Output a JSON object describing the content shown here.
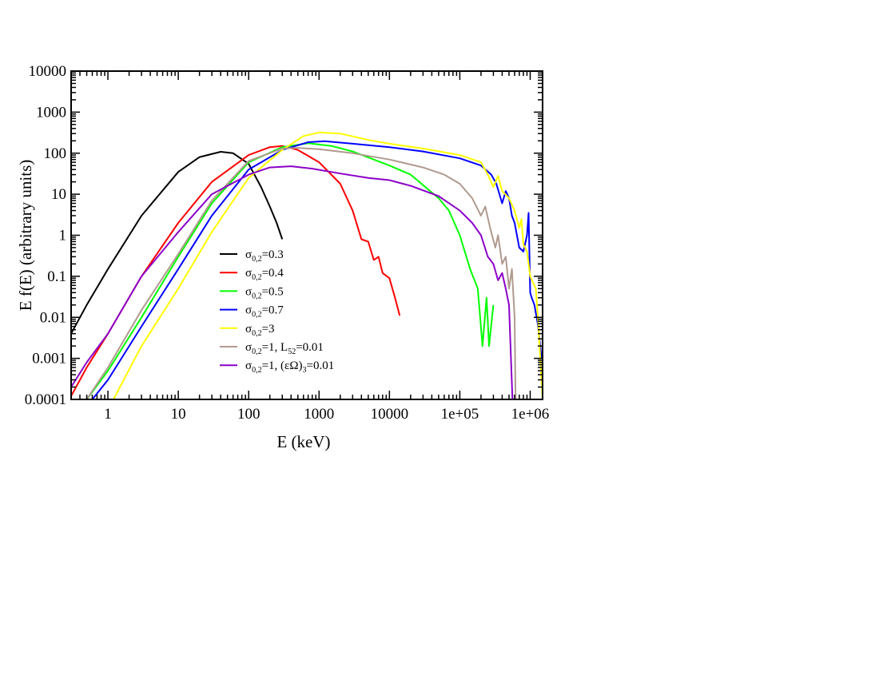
{
  "chart_data": {
    "type": "line",
    "xlabel": "E (keV)",
    "ylabel": "E f(E) (arbitrary units)",
    "x_scale": "log",
    "y_scale": "log",
    "xlim": [
      0.3,
      1500000
    ],
    "ylim": [
      0.0001,
      10000
    ],
    "x_tick_labels": [
      "1",
      "10",
      "100",
      "1000",
      "10000",
      "1e+05",
      "1e+06"
    ],
    "x_tick_values": [
      1,
      10,
      100,
      1000,
      10000,
      100000,
      1000000
    ],
    "y_tick_labels": [
      "0.0001",
      "0.001",
      "0.01",
      "0.1",
      "1",
      "10",
      "100",
      "1000",
      "10000"
    ],
    "y_tick_values": [
      0.0001,
      0.001,
      0.01,
      0.1,
      1,
      10,
      100,
      1000,
      10000
    ],
    "grid": false,
    "legend_position": "center-inside",
    "series": [
      {
        "legend": {
          "sym": "σ",
          "sub": "0,2",
          "rest": "=0.3"
        },
        "color": "#000000",
        "points": [
          [
            0.3,
            0.004
          ],
          [
            0.5,
            0.02
          ],
          [
            1,
            0.15
          ],
          [
            3,
            3
          ],
          [
            10,
            35
          ],
          [
            20,
            80
          ],
          [
            40,
            108
          ],
          [
            60,
            100
          ],
          [
            100,
            55
          ],
          [
            150,
            15
          ],
          [
            200,
            5
          ],
          [
            250,
            2
          ],
          [
            300,
            0.8
          ]
        ]
      },
      {
        "legend": {
          "sym": "σ",
          "sub": "0,2",
          "rest": "=0.4"
        },
        "color": "#ff0000",
        "points": [
          [
            0.3,
            0.00012
          ],
          [
            0.5,
            0.0006
          ],
          [
            1,
            0.004
          ],
          [
            3,
            0.1
          ],
          [
            10,
            2
          ],
          [
            30,
            20
          ],
          [
            100,
            90
          ],
          [
            200,
            140
          ],
          [
            300,
            150
          ],
          [
            500,
            120
          ],
          [
            1000,
            60
          ],
          [
            2000,
            18
          ],
          [
            3000,
            4
          ],
          [
            4000,
            0.8
          ],
          [
            5000,
            0.7
          ],
          [
            6000,
            0.25
          ],
          [
            7000,
            0.3
          ],
          [
            8000,
            0.12
          ],
          [
            10000,
            0.09
          ],
          [
            12000,
            0.03
          ],
          [
            14000,
            0.011
          ]
        ]
      },
      {
        "legend": {
          "sym": "σ",
          "sub": "0,2",
          "rest": "=0.5"
        },
        "color": "#00ff00",
        "points": [
          [
            0.5,
            0.0001
          ],
          [
            1,
            0.0005
          ],
          [
            3,
            0.01
          ],
          [
            10,
            0.3
          ],
          [
            30,
            6
          ],
          [
            100,
            60
          ],
          [
            300,
            140
          ],
          [
            700,
            175
          ],
          [
            1500,
            150
          ],
          [
            3000,
            110
          ],
          [
            6000,
            70
          ],
          [
            10000,
            50
          ],
          [
            20000,
            30
          ],
          [
            50000,
            8
          ],
          [
            70000,
            4
          ],
          [
            100000,
            1
          ],
          [
            140000,
            0.15
          ],
          [
            180000,
            0.05
          ],
          [
            210000,
            0.002
          ],
          [
            240000,
            0.03
          ],
          [
            260000,
            0.002
          ],
          [
            300000,
            0.02
          ]
        ]
      },
      {
        "legend": {
          "sym": "σ",
          "sub": "0,2",
          "rest": "=0.7"
        },
        "color": "#0000ff",
        "points": [
          [
            0.6,
            0.0001
          ],
          [
            1,
            0.0003
          ],
          [
            3,
            0.006
          ],
          [
            10,
            0.15
          ],
          [
            30,
            3
          ],
          [
            100,
            40
          ],
          [
            300,
            120
          ],
          [
            700,
            185
          ],
          [
            1200,
            195
          ],
          [
            3000,
            170
          ],
          [
            10000,
            140
          ],
          [
            30000,
            110
          ],
          [
            100000,
            75
          ],
          [
            200000,
            50
          ],
          [
            280000,
            30
          ],
          [
            330000,
            18
          ],
          [
            400000,
            6
          ],
          [
            450000,
            12
          ],
          [
            500000,
            8
          ],
          [
            550000,
            3
          ],
          [
            600000,
            2
          ],
          [
            700000,
            0.5
          ],
          [
            800000,
            0.4
          ],
          [
            900000,
            1
          ],
          [
            950000,
            3.5
          ],
          [
            1000000,
            0.04
          ],
          [
            1050000,
            0.03
          ],
          [
            1150000,
            0.02
          ],
          [
            1300000,
            0.006
          ],
          [
            1450000,
            0.001
          ]
        ]
      },
      {
        "legend": {
          "sym": "σ",
          "sub": "0,2",
          "rest": "=3"
        },
        "color": "#ffff00",
        "points": [
          [
            1.2,
            0.0001
          ],
          [
            3,
            0.002
          ],
          [
            10,
            0.05
          ],
          [
            30,
            1.2
          ],
          [
            100,
            25
          ],
          [
            300,
            120
          ],
          [
            600,
            260
          ],
          [
            1000,
            320
          ],
          [
            2000,
            300
          ],
          [
            5000,
            210
          ],
          [
            10000,
            170
          ],
          [
            30000,
            130
          ],
          [
            100000,
            90
          ],
          [
            200000,
            60
          ],
          [
            250000,
            30
          ],
          [
            300000,
            15
          ],
          [
            350000,
            28
          ],
          [
            400000,
            12
          ],
          [
            500000,
            8
          ],
          [
            600000,
            4
          ],
          [
            700000,
            1.5
          ],
          [
            750000,
            2.5
          ],
          [
            800000,
            0.6
          ],
          [
            900000,
            0.4
          ],
          [
            1000000,
            0.1
          ],
          [
            1200000,
            0.05
          ],
          [
            1300000,
            0.008
          ],
          [
            1500000,
            0.0001
          ]
        ]
      },
      {
        "legend": {
          "sym": "σ",
          "sub": "0,2",
          "rest": "=1, L",
          "sub2": "52",
          "rest2": "=0.01"
        },
        "color": "#b09a8f",
        "points": [
          [
            0.5,
            0.0001
          ],
          [
            1,
            0.0006
          ],
          [
            3,
            0.015
          ],
          [
            10,
            0.35
          ],
          [
            30,
            7
          ],
          [
            100,
            65
          ],
          [
            300,
            130
          ],
          [
            500,
            135
          ],
          [
            1000,
            125
          ],
          [
            3000,
            100
          ],
          [
            10000,
            70
          ],
          [
            30000,
            45
          ],
          [
            60000,
            30
          ],
          [
            100000,
            18
          ],
          [
            150000,
            8
          ],
          [
            200000,
            3
          ],
          [
            230000,
            5
          ],
          [
            270000,
            1.5
          ],
          [
            320000,
            0.5
          ],
          [
            350000,
            1
          ],
          [
            400000,
            0.2
          ],
          [
            450000,
            0.3
          ],
          [
            500000,
            0.05
          ],
          [
            550000,
            0.15
          ],
          [
            600000,
            0.01
          ],
          [
            620000,
            0.0001
          ]
        ]
      },
      {
        "legend": {
          "sym": "σ",
          "sub": "0,2",
          "rest": "=1, (εΩ)",
          "sub2": "3",
          "rest2": "=0.01"
        },
        "color": "#8b00c8",
        "points": [
          [
            0.3,
            0.0002
          ],
          [
            0.5,
            0.0008
          ],
          [
            1,
            0.004
          ],
          [
            3,
            0.1
          ],
          [
            10,
            1.2
          ],
          [
            30,
            10
          ],
          [
            100,
            30
          ],
          [
            200,
            45
          ],
          [
            400,
            48
          ],
          [
            800,
            42
          ],
          [
            2000,
            32
          ],
          [
            5000,
            25
          ],
          [
            10000,
            22
          ],
          [
            20000,
            16
          ],
          [
            50000,
            9
          ],
          [
            100000,
            4
          ],
          [
            150000,
            2
          ],
          [
            200000,
            1
          ],
          [
            250000,
            0.3
          ],
          [
            300000,
            0.2
          ],
          [
            350000,
            0.08
          ],
          [
            400000,
            0.12
          ],
          [
            450000,
            0.05
          ],
          [
            500000,
            0.02
          ],
          [
            560000,
            0.0001
          ]
        ]
      }
    ]
  }
}
